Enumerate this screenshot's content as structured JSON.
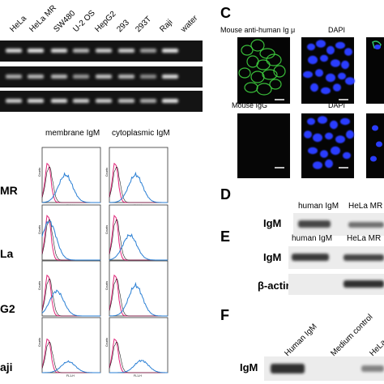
{
  "panelA": {
    "lanes": [
      "HeLa",
      "HeLa MR",
      "SW480",
      "U-2 OS",
      "HepG2",
      "293",
      "293T",
      "Raji",
      "water"
    ],
    "gel_rows": [
      [
        0.9,
        0.95,
        0.9,
        0.75,
        0.85,
        0.85,
        0.65,
        0.95,
        0.0
      ],
      [
        0.7,
        0.75,
        0.75,
        0.6,
        0.8,
        0.75,
        0.55,
        0.9,
        0.0
      ],
      [
        0.85,
        0.9,
        0.9,
        0.85,
        0.85,
        0.8,
        0.7,
        0.95,
        0.0
      ]
    ]
  },
  "panelB": {
    "col_headers": [
      "membrane IgM",
      "cytoplasmic IgM"
    ],
    "row_labels": [
      "MR",
      "La",
      "G2",
      "aji"
    ],
    "xaxis_label": "FL1-H",
    "yaxis_label": "Counts"
  },
  "panelC": {
    "letter": "C",
    "row1": [
      "Mouse anti-human Ig μ",
      "DAPI"
    ],
    "row2": [
      "Mouse IgG",
      "DAPI"
    ]
  },
  "panelD": {
    "letter": "D",
    "lanes": [
      "human IgM",
      "HeLa MR"
    ],
    "row_label": "IgM",
    "band_intensity": [
      0.8,
      0.6
    ]
  },
  "panelE": {
    "letter": "E",
    "lanes": [
      "human IgM",
      "HeLa MR"
    ],
    "rows": [
      {
        "label": "IgM",
        "band_intensity": [
          0.85,
          0.8
        ]
      },
      {
        "label": "β-actin",
        "band_intensity": [
          0.0,
          0.9
        ]
      }
    ]
  },
  "panelF": {
    "letter": "F",
    "lanes": [
      "Human IgM",
      "Medium control",
      "HeLa"
    ],
    "row_label": "IgM",
    "band_intensity": [
      0.9,
      0.0,
      0.5
    ]
  },
  "colors": {
    "gel_bg": "#141414",
    "band": "#f2f2f2",
    "membrane_band": "#1e1e1e",
    "if_background": "#050505",
    "if_green": "#3fd23f",
    "if_blue": "#2a3dff",
    "trace_pink": "#e0287a",
    "trace_blue": "#2a7fd4",
    "trace_dark": "#222222"
  }
}
